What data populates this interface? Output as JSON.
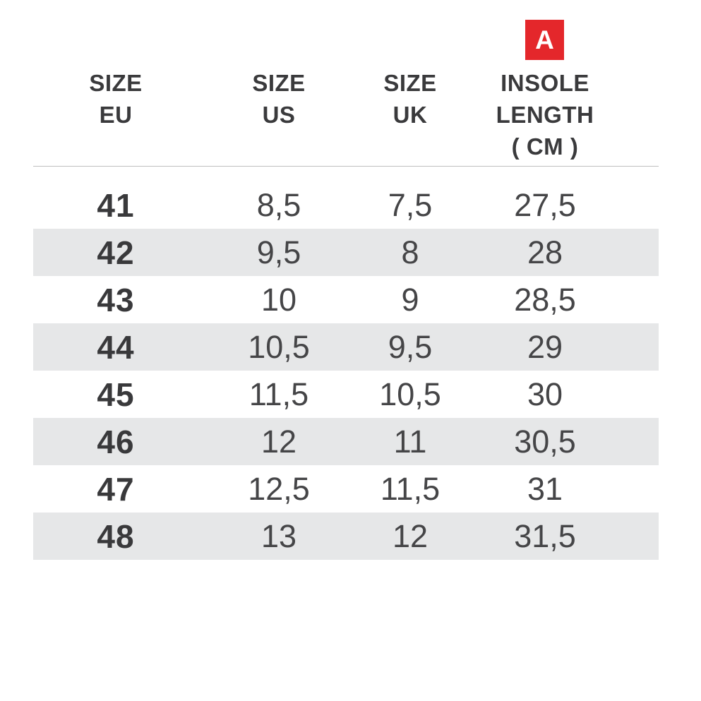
{
  "page": {
    "background": "#ffffff"
  },
  "badge": {
    "label": "A",
    "background": "#e4272b",
    "text_color": "#ffffff"
  },
  "table": {
    "headers": [
      {
        "id": "size-eu",
        "line1": "SIZE",
        "line2": "EU",
        "line3": ""
      },
      {
        "id": "size-us",
        "line1": "SIZE",
        "line2": "US",
        "line3": ""
      },
      {
        "id": "size-uk",
        "line1": "SIZE",
        "line2": "UK",
        "line3": ""
      },
      {
        "id": "insole-length-cm",
        "line1": "INSOLE",
        "line2": "LENGTH",
        "line3": "( CM )"
      }
    ],
    "rows": [
      {
        "eu": "41",
        "us": "8,5",
        "uk": "7,5",
        "insole_cm": "27,5"
      },
      {
        "eu": "42",
        "us": "9,5",
        "uk": "8",
        "insole_cm": "28"
      },
      {
        "eu": "43",
        "us": "10",
        "uk": "9",
        "insole_cm": "28,5"
      },
      {
        "eu": "44",
        "us": "10,5",
        "uk": "9,5",
        "insole_cm": "29"
      },
      {
        "eu": "45",
        "us": "11,5",
        "uk": "10,5",
        "insole_cm": "30"
      },
      {
        "eu": "46",
        "us": "12",
        "uk": "11",
        "insole_cm": "30,5"
      },
      {
        "eu": "47",
        "us": "12,5",
        "uk": "11,5",
        "insole_cm": "31"
      },
      {
        "eu": "48",
        "us": "13",
        "uk": "12",
        "insole_cm": "31,5"
      }
    ],
    "colors": {
      "alt_row_background": "#e6e7e8",
      "divider": "#bfbfbf",
      "header_text": "#3a3a3c",
      "eu_text": "#39393b",
      "data_text": "#454547"
    }
  },
  "chart_data": {
    "type": "table",
    "title": "Shoe size conversion with insole length",
    "columns": [
      "SIZE EU",
      "SIZE US",
      "SIZE UK",
      "INSOLE LENGTH ( CM )"
    ],
    "rows": [
      [
        "41",
        "8,5",
        "7,5",
        "27,5"
      ],
      [
        "42",
        "9,5",
        "8",
        "28"
      ],
      [
        "43",
        "10",
        "9",
        "28,5"
      ],
      [
        "44",
        "10,5",
        "9,5",
        "29"
      ],
      [
        "45",
        "11,5",
        "10,5",
        "30"
      ],
      [
        "46",
        "12",
        "11",
        "30,5"
      ],
      [
        "47",
        "12,5",
        "11,5",
        "31"
      ],
      [
        "48",
        "13",
        "12",
        "31,5"
      ]
    ],
    "annotations": [
      "Red square marker labeled 'A' above the INSOLE LENGTH ( CM ) column"
    ],
    "layout_hints": {
      "striped_rows": "even rows shaded light gray",
      "header_divider_line": true,
      "all_cells_centered": true
    }
  }
}
